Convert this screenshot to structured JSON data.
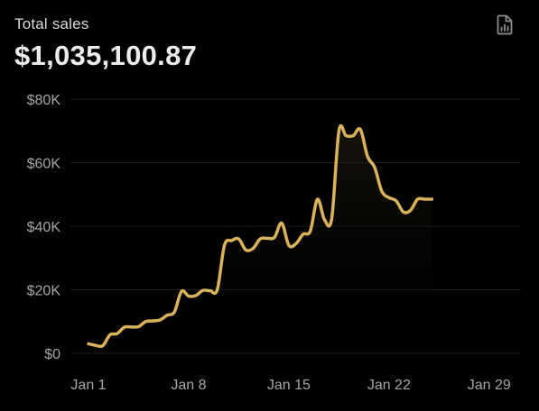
{
  "header": {
    "title": "Total sales",
    "total": "$1,035,100.87",
    "report_icon": "file-chart-icon"
  },
  "colors": {
    "background": "#000000",
    "line": "#d9b25c",
    "grid": "#1e1e1e",
    "tick_text": "#a6a6a6"
  },
  "chart_data": {
    "type": "area",
    "title": "Total sales",
    "xlabel": "",
    "ylabel": "",
    "ylim": [
      0,
      80000
    ],
    "grid": true,
    "y_ticks": [
      {
        "value": 0,
        "label": "$0"
      },
      {
        "value": 20000,
        "label": "$20K"
      },
      {
        "value": 40000,
        "label": "$40K"
      },
      {
        "value": 60000,
        "label": "$60K"
      },
      {
        "value": 80000,
        "label": "$80K"
      }
    ],
    "x_ticks": [
      {
        "day": 1,
        "label": "Jan 1"
      },
      {
        "day": 8,
        "label": "Jan 8"
      },
      {
        "day": 15,
        "label": "Jan 15"
      },
      {
        "day": 22,
        "label": "Jan 22"
      },
      {
        "day": 29,
        "label": "Jan 29"
      }
    ],
    "x_domain": [
      1,
      31
    ],
    "series": [
      {
        "points": [
          [
            1,
            3000
          ],
          [
            1.5,
            2500
          ],
          [
            2,
            2400
          ],
          [
            2.5,
            5800
          ],
          [
            3,
            6200
          ],
          [
            3.5,
            8200
          ],
          [
            4,
            8300
          ],
          [
            4.5,
            8400
          ],
          [
            5,
            10000
          ],
          [
            5.5,
            10200
          ],
          [
            6,
            10500
          ],
          [
            6.5,
            12000
          ],
          [
            7,
            13000
          ],
          [
            7.5,
            19500
          ],
          [
            8,
            18000
          ],
          [
            8.5,
            18200
          ],
          [
            9,
            19800
          ],
          [
            9.5,
            19700
          ],
          [
            10,
            20000
          ],
          [
            10.5,
            34000
          ],
          [
            11,
            35500
          ],
          [
            11.5,
            36000
          ],
          [
            12,
            32500
          ],
          [
            12.5,
            33000
          ],
          [
            13,
            36000
          ],
          [
            13.5,
            36200
          ],
          [
            14,
            36500
          ],
          [
            14.5,
            41000
          ],
          [
            15,
            34000
          ],
          [
            15.5,
            34500
          ],
          [
            16,
            37500
          ],
          [
            16.5,
            38500
          ],
          [
            17,
            48500
          ],
          [
            17.5,
            42000
          ],
          [
            18,
            42500
          ],
          [
            18.5,
            70000
          ],
          [
            19,
            68500
          ],
          [
            19.5,
            68500
          ],
          [
            20,
            70500
          ],
          [
            20.5,
            62000
          ],
          [
            21,
            58500
          ],
          [
            21.5,
            51000
          ],
          [
            22,
            49000
          ],
          [
            22.5,
            48000
          ],
          [
            23,
            44500
          ],
          [
            23.5,
            45000
          ],
          [
            24,
            48500
          ],
          [
            24.5,
            48500
          ],
          [
            25,
            48500
          ]
        ]
      }
    ]
  }
}
